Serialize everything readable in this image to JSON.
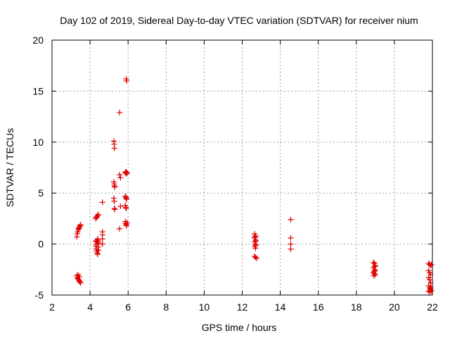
{
  "chart_data": {
    "type": "scatter",
    "title": "Day 102 of 2019, Sidereal Day-to-day VTEC variation (SDTVAR) for receiver nium",
    "xlabel": "GPS time / hours",
    "ylabel": "SDTVAR / TECUs",
    "xlim": [
      2,
      22
    ],
    "ylim": [
      -5,
      20
    ],
    "xticks": [
      2,
      4,
      6,
      8,
      10,
      12,
      14,
      16,
      18,
      20,
      22
    ],
    "yticks": [
      -5,
      0,
      5,
      10,
      15,
      20
    ],
    "grid": true,
    "marker": "+",
    "color": "#e00000",
    "series": [
      {
        "name": "SDTVAR",
        "points": [
          [
            3.3,
            0.7
          ],
          [
            3.32,
            1.0
          ],
          [
            3.35,
            1.2
          ],
          [
            3.38,
            1.4
          ],
          [
            3.4,
            1.5
          ],
          [
            3.42,
            1.6
          ],
          [
            3.45,
            1.7
          ],
          [
            3.48,
            1.8
          ],
          [
            3.5,
            1.9
          ],
          [
            3.3,
            -3.1
          ],
          [
            3.33,
            -3.3
          ],
          [
            3.36,
            -3.4
          ],
          [
            3.4,
            -3.5
          ],
          [
            3.43,
            -3.6
          ],
          [
            3.46,
            -3.7
          ],
          [
            3.5,
            -3.8
          ],
          [
            3.38,
            -3.0
          ],
          [
            3.45,
            -3.2
          ],
          [
            4.3,
            2.5
          ],
          [
            4.33,
            2.6
          ],
          [
            4.36,
            2.7
          ],
          [
            4.4,
            2.8
          ],
          [
            4.43,
            2.9
          ],
          [
            4.3,
            -0.2
          ],
          [
            4.33,
            0.0
          ],
          [
            4.35,
            0.2
          ],
          [
            4.38,
            0.4
          ],
          [
            4.4,
            0.5
          ],
          [
            4.42,
            0.3
          ],
          [
            4.45,
            0.1
          ],
          [
            4.32,
            -0.5
          ],
          [
            4.35,
            -0.7
          ],
          [
            4.38,
            -0.9
          ],
          [
            4.4,
            -1.0
          ],
          [
            4.42,
            -0.3
          ],
          [
            4.45,
            -0.6
          ],
          [
            4.3,
            0.3
          ],
          [
            4.65,
            4.1
          ],
          [
            4.65,
            1.2
          ],
          [
            4.65,
            0.9
          ],
          [
            4.65,
            0.5
          ],
          [
            4.65,
            0.0
          ],
          [
            5.25,
            10.1
          ],
          [
            5.27,
            9.8
          ],
          [
            5.28,
            9.4
          ],
          [
            5.25,
            6.1
          ],
          [
            5.27,
            5.9
          ],
          [
            5.28,
            5.7
          ],
          [
            5.3,
            5.6
          ],
          [
            5.25,
            4.5
          ],
          [
            5.27,
            4.2
          ],
          [
            5.28,
            3.5
          ],
          [
            5.3,
            3.4
          ],
          [
            5.55,
            12.9
          ],
          [
            5.55,
            6.8
          ],
          [
            5.6,
            6.5
          ],
          [
            5.6,
            3.7
          ],
          [
            5.55,
            1.5
          ],
          [
            5.9,
            16.2
          ],
          [
            5.92,
            16.0
          ],
          [
            5.85,
            7.0
          ],
          [
            5.88,
            7.1
          ],
          [
            5.9,
            7.0
          ],
          [
            5.92,
            6.9
          ],
          [
            5.95,
            7.0
          ],
          [
            5.85,
            4.7
          ],
          [
            5.88,
            4.6
          ],
          [
            5.9,
            4.5
          ],
          [
            5.92,
            4.4
          ],
          [
            5.85,
            3.8
          ],
          [
            5.88,
            3.6
          ],
          [
            5.9,
            3.5
          ],
          [
            5.85,
            2.2
          ],
          [
            5.88,
            2.0
          ],
          [
            5.9,
            1.9
          ],
          [
            5.92,
            1.8
          ],
          [
            5.95,
            2.1
          ],
          [
            12.65,
            1.0
          ],
          [
            12.7,
            0.8
          ],
          [
            12.65,
            0.6
          ],
          [
            12.7,
            0.4
          ],
          [
            12.65,
            0.2
          ],
          [
            12.7,
            0.0
          ],
          [
            12.65,
            -0.2
          ],
          [
            12.7,
            -0.4
          ],
          [
            12.68,
            0.7
          ],
          [
            12.72,
            0.3
          ],
          [
            12.72,
            -0.1
          ],
          [
            12.65,
            -1.2
          ],
          [
            12.7,
            -1.3
          ],
          [
            12.75,
            -1.4
          ],
          [
            14.55,
            2.4
          ],
          [
            14.55,
            0.6
          ],
          [
            14.55,
            0.0
          ],
          [
            14.55,
            -0.5
          ],
          [
            18.9,
            -1.8
          ],
          [
            18.95,
            -1.9
          ],
          [
            19.0,
            -2.1
          ],
          [
            18.9,
            -2.3
          ],
          [
            18.95,
            -2.5
          ],
          [
            19.0,
            -2.6
          ],
          [
            18.9,
            -2.8
          ],
          [
            18.95,
            -2.9
          ],
          [
            19.0,
            -3.0
          ],
          [
            18.92,
            -3.1
          ],
          [
            18.98,
            -2.2
          ],
          [
            18.93,
            -2.7
          ],
          [
            21.8,
            -1.9
          ],
          [
            21.85,
            -2.0
          ],
          [
            21.9,
            -2.1
          ],
          [
            21.8,
            -2.6
          ],
          [
            21.85,
            -2.8
          ],
          [
            21.9,
            -3.0
          ],
          [
            21.8,
            -3.3
          ],
          [
            21.85,
            -3.5
          ],
          [
            21.9,
            -3.8
          ],
          [
            21.8,
            -4.1
          ],
          [
            21.85,
            -4.3
          ],
          [
            21.9,
            -4.5
          ],
          [
            21.8,
            -4.6
          ],
          [
            21.85,
            -4.7
          ],
          [
            21.9,
            -4.4
          ],
          [
            21.95,
            -4.6
          ],
          [
            21.95,
            -2.0
          ],
          [
            21.92,
            -4.2
          ]
        ]
      }
    ]
  }
}
